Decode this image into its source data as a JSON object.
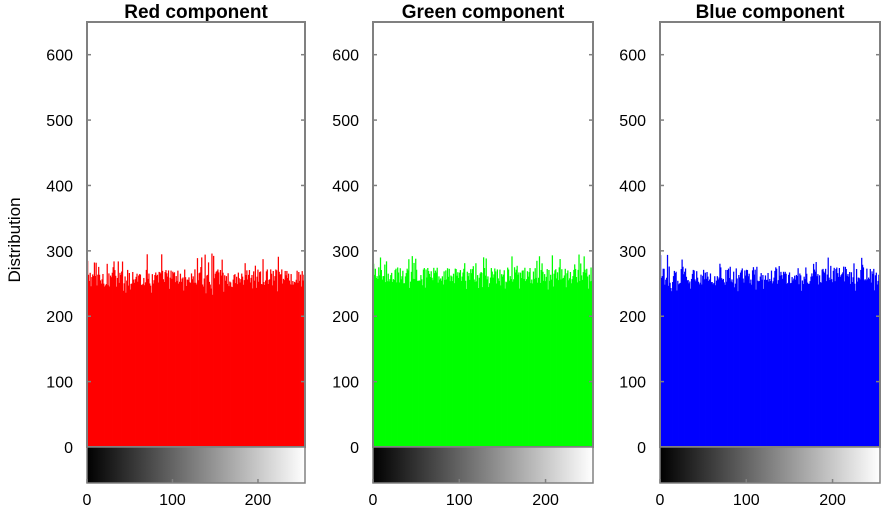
{
  "figure": {
    "ylabel": "Distribution"
  },
  "chart_data": [
    {
      "type": "bar",
      "title": "Red component",
      "color": "#ff0000",
      "xlim": [
        0,
        255
      ],
      "ylim": [
        0,
        650
      ],
      "xticks": [
        "0",
        "100",
        "200"
      ],
      "yticks": [
        "0",
        "100",
        "200",
        "300",
        "400",
        "500",
        "600"
      ],
      "histogram": {
        "bins": 256,
        "min_count": 232,
        "max_count": 296,
        "typical_floor": 245,
        "typical_top": 272
      },
      "colorbar": "grayscale 0-255"
    },
    {
      "type": "bar",
      "title": "Green component",
      "color": "#00ff00",
      "xlim": [
        0,
        255
      ],
      "ylim": [
        0,
        650
      ],
      "xticks": [
        "0",
        "100",
        "200"
      ],
      "yticks": [
        "0",
        "100",
        "200",
        "300",
        "400",
        "500",
        "600"
      ],
      "histogram": {
        "bins": 256,
        "min_count": 240,
        "max_count": 296,
        "typical_floor": 250,
        "typical_top": 275
      },
      "colorbar": "grayscale 0-255"
    },
    {
      "type": "bar",
      "title": "Blue component",
      "color": "#0000ff",
      "xlim": [
        0,
        255
      ],
      "ylim": [
        0,
        650
      ],
      "xticks": [
        "0",
        "100",
        "200"
      ],
      "yticks": [
        "0",
        "100",
        "200",
        "300",
        "400",
        "500",
        "600"
      ],
      "histogram": {
        "bins": 256,
        "min_count": 238,
        "max_count": 294,
        "typical_floor": 248,
        "typical_top": 276
      },
      "colorbar": "grayscale 0-255"
    }
  ]
}
